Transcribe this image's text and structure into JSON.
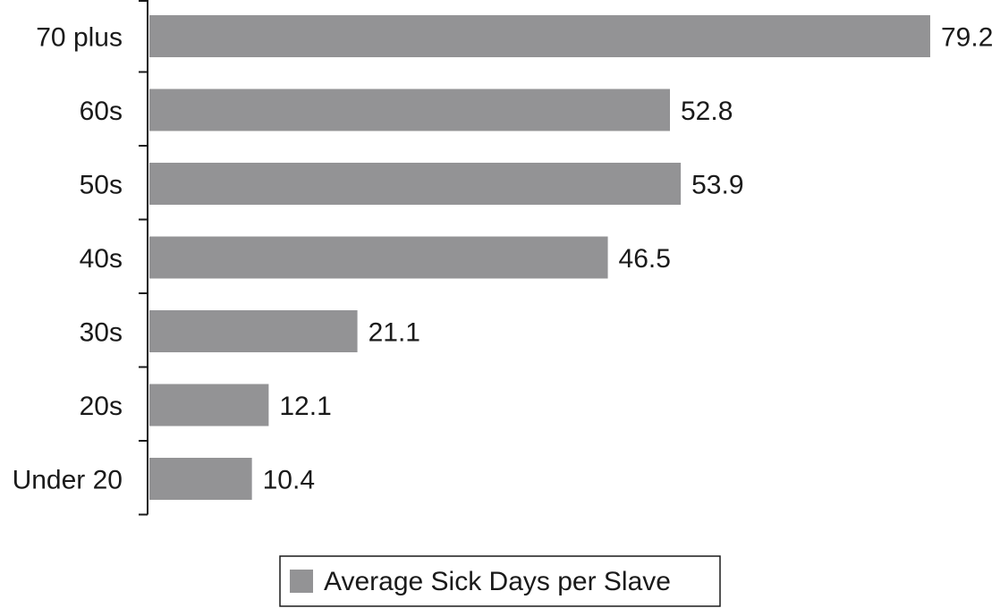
{
  "chart_data": {
    "type": "bar",
    "orientation": "horizontal",
    "categories": [
      "70 plus",
      "60s",
      "50s",
      "40s",
      "30s",
      "20s",
      "Under 20"
    ],
    "series": [
      {
        "name": "Average Sick Days per Slave",
        "values": [
          79.2,
          52.8,
          53.9,
          46.5,
          21.1,
          12.1,
          10.4
        ],
        "labels": [
          "79.2",
          "52.8",
          "53.9",
          "46.5",
          "21.1",
          "12.1",
          "10.4"
        ]
      }
    ],
    "xlim": [
      0,
      79.2
    ],
    "grid": false,
    "legend_position": "bottom-center",
    "bar_color": "#939395",
    "axis_color": "#1a1a1a"
  }
}
